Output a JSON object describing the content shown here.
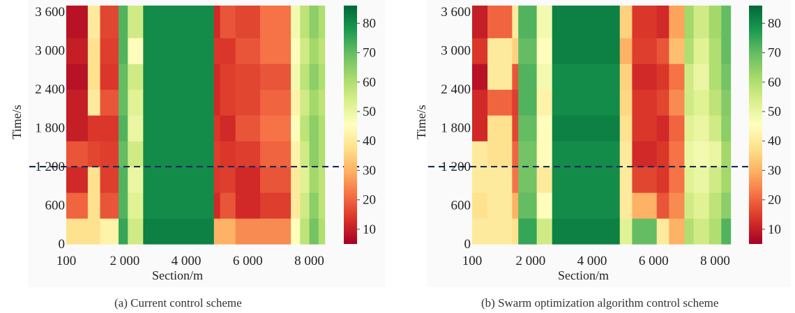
{
  "colors": {
    "dashed_line": "#1a2a5a",
    "scale": [
      "#a50026",
      "#d73027",
      "#f46d43",
      "#fdae61",
      "#fee08b",
      "#ffffbf",
      "#d9ef8b",
      "#a6d96a",
      "#66bd63",
      "#1a9850",
      "#006837"
    ]
  },
  "chart_data": [
    {
      "type": "heatmap",
      "caption": "(a) Current control scheme",
      "xlabel": "Section/m",
      "ylabel": "Time/s",
      "xlim": [
        100,
        8600
      ],
      "ylim": [
        0,
        3700
      ],
      "x_ticks": [
        100,
        2000,
        4000,
        6000,
        8000
      ],
      "x_tick_labels": [
        "100",
        "2 000",
        "4 000",
        "6 000",
        "8 000"
      ],
      "y_ticks": [
        0,
        600,
        1200,
        1800,
        2400,
        3000,
        3600
      ],
      "y_tick_labels": [
        "0",
        "600",
        "1 200",
        "1 800",
        "2 400",
        "3 000",
        "3 600"
      ],
      "colorbar": {
        "min": 5,
        "max": 86,
        "ticks": [
          10,
          20,
          30,
          40,
          50,
          60,
          70,
          80
        ],
        "tick_labels": [
          "10",
          "20",
          "30",
          "40",
          "50",
          "60",
          "70",
          "80"
        ]
      },
      "reference_line_y": 1200,
      "columns_x_start": [
        100,
        800,
        1200,
        1800,
        2100,
        2600,
        4900,
        5100,
        5600,
        6400,
        7400,
        7700,
        8000,
        8300
      ],
      "columns_x_end": [
        800,
        1200,
        1800,
        2100,
        2600,
        4900,
        5100,
        5600,
        6400,
        7400,
        7700,
        8000,
        8300,
        8500
      ],
      "rows_y": [
        0,
        400,
        800,
        1200,
        1600,
        2000,
        2400,
        2800,
        3200,
        3700
      ],
      "values": [
        [
          38,
          38,
          42,
          75,
          55,
          82,
          30,
          30,
          25,
          25,
          45,
          58,
          68,
          60
        ],
        [
          20,
          38,
          18,
          72,
          52,
          80,
          12,
          18,
          12,
          15,
          40,
          55,
          65,
          58
        ],
        [
          12,
          38,
          15,
          72,
          50,
          80,
          14,
          15,
          12,
          18,
          40,
          52,
          62,
          58
        ],
        [
          18,
          16,
          15,
          70,
          55,
          80,
          15,
          14,
          15,
          20,
          42,
          55,
          65,
          60
        ],
        [
          10,
          14,
          14,
          72,
          50,
          80,
          14,
          12,
          18,
          22,
          45,
          58,
          65,
          60
        ],
        [
          10,
          40,
          18,
          70,
          52,
          80,
          12,
          15,
          16,
          20,
          42,
          55,
          62,
          58
        ],
        [
          8,
          38,
          14,
          70,
          55,
          80,
          12,
          15,
          16,
          18,
          48,
          58,
          65,
          60
        ],
        [
          10,
          38,
          15,
          72,
          45,
          80,
          14,
          14,
          18,
          22,
          45,
          55,
          62,
          58
        ],
        [
          8,
          40,
          16,
          72,
          55,
          80,
          12,
          18,
          16,
          22,
          48,
          58,
          65,
          60
        ]
      ]
    },
    {
      "type": "heatmap",
      "caption": "(b) Swarm optimization algorithm control scheme",
      "xlabel": "Section/m",
      "ylabel": "Time/s",
      "xlim": [
        100,
        8600
      ],
      "ylim": [
        0,
        3700
      ],
      "x_ticks": [
        100,
        2000,
        4000,
        6000,
        8000
      ],
      "x_tick_labels": [
        "100",
        "2 000",
        "4 000",
        "6 000",
        "8 000"
      ],
      "y_ticks": [
        0,
        600,
        1200,
        1800,
        2400,
        3000,
        3600
      ],
      "y_tick_labels": [
        "0",
        "600",
        "1 200",
        "1 800",
        "2 400",
        "3 000",
        "3 600"
      ],
      "colorbar": {
        "min": 5,
        "max": 86,
        "ticks": [
          10,
          20,
          30,
          40,
          50,
          60,
          70,
          80
        ],
        "tick_labels": [
          "10",
          "20",
          "30",
          "40",
          "50",
          "60",
          "70",
          "80"
        ]
      },
      "reference_line_y": 1200,
      "columns_x_start": [
        100,
        600,
        1400,
        1600,
        2200,
        2700,
        4900,
        5300,
        6100,
        6500,
        7000,
        7300,
        7800,
        8200
      ],
      "columns_x_end": [
        600,
        1400,
        1600,
        2200,
        2700,
        4900,
        5300,
        6100,
        6500,
        7000,
        7300,
        7800,
        8200,
        8500
      ],
      "rows_y": [
        0,
        400,
        800,
        1200,
        1600,
        2000,
        2400,
        2800,
        3200,
        3700
      ],
      "values": [
        [
          40,
          40,
          38,
          75,
          55,
          82,
          52,
          70,
          40,
          30,
          60,
          55,
          60,
          72
        ],
        [
          38,
          40,
          30,
          70,
          45,
          80,
          40,
          30,
          18,
          25,
          55,
          52,
          58,
          65
        ],
        [
          40,
          40,
          22,
          68,
          40,
          80,
          40,
          16,
          14,
          22,
          52,
          50,
          55,
          62
        ],
        [
          40,
          38,
          20,
          68,
          45,
          80,
          40,
          12,
          14,
          22,
          50,
          48,
          50,
          62
        ],
        [
          12,
          38,
          16,
          70,
          45,
          82,
          38,
          14,
          12,
          20,
          52,
          50,
          55,
          65
        ],
        [
          12,
          20,
          15,
          72,
          42,
          80,
          36,
          14,
          16,
          25,
          55,
          52,
          58,
          66
        ],
        [
          8,
          40,
          18,
          72,
          48,
          80,
          35,
          12,
          14,
          22,
          55,
          50,
          60,
          68
        ],
        [
          14,
          40,
          35,
          70,
          45,
          82,
          30,
          15,
          18,
          32,
          60,
          52,
          60,
          70
        ],
        [
          10,
          20,
          40,
          72,
          48,
          82,
          35,
          14,
          12,
          28,
          62,
          55,
          62,
          70
        ]
      ]
    }
  ]
}
